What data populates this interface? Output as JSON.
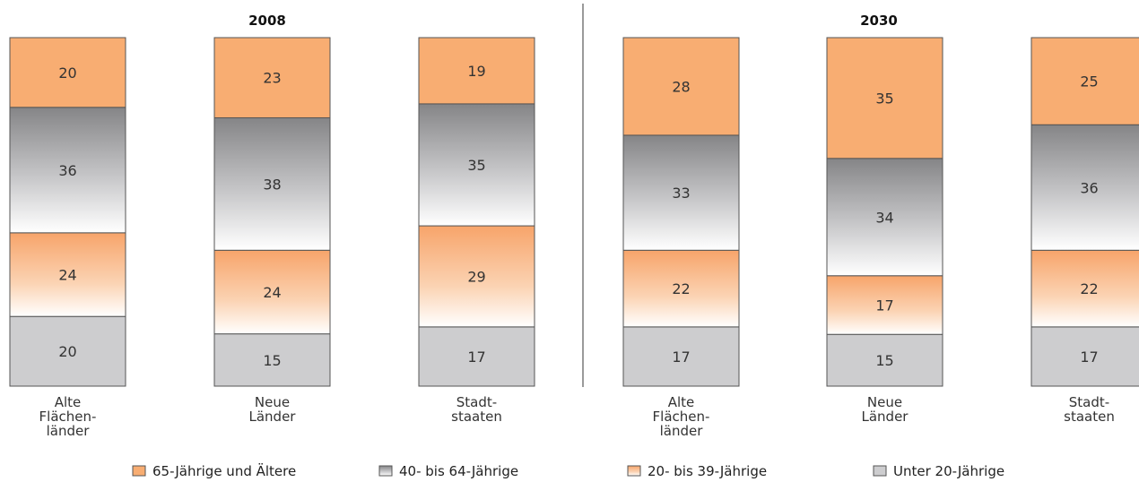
{
  "chart_data": {
    "type": "bar",
    "stacked": true,
    "normalized_to": 100,
    "unit": "%",
    "categories": [
      "Alte Flächen-länder",
      "Neue Länder",
      "Stadt-staaten"
    ],
    "category_lines": [
      [
        "Alte",
        "Flächen-",
        "länder"
      ],
      [
        "Neue",
        "Länder"
      ],
      [
        "Stadt-",
        "staaten"
      ]
    ],
    "panels": [
      {
        "title": "2008",
        "series": [
          {
            "name": "Unter 20-Jährige",
            "values": [
              20,
              15,
              17
            ]
          },
          {
            "name": "20- bis 39-Jährige",
            "values": [
              24,
              24,
              29
            ]
          },
          {
            "name": "40- bis 64-Jährige",
            "values": [
              36,
              38,
              35
            ]
          },
          {
            "name": "65-Jährige und Ältere",
            "values": [
              20,
              23,
              19
            ]
          }
        ]
      },
      {
        "title": "2030",
        "series": [
          {
            "name": "Unter 20-Jährige",
            "values": [
              17,
              15,
              17
            ]
          },
          {
            "name": "20- bis 39-Jährige",
            "values": [
              22,
              17,
              22
            ]
          },
          {
            "name": "40- bis 64-Jährige",
            "values": [
              33,
              34,
              36
            ]
          },
          {
            "name": "65-Jährige und Ältere",
            "values": [
              28,
              35,
              25
            ]
          }
        ]
      }
    ],
    "legend": {
      "placement": "bottom",
      "order": [
        "65-Jährige und Ältere",
        "40- bis 64-Jährige",
        "20- bis 39-Jährige",
        "Unter 20-Jährige"
      ]
    },
    "colors": {
      "65-Jährige und Ältere": "#f8ad72",
      "40- bis 64-Jährige": "#8a8a8c",
      "20- bis 39-Jährige": "#f7a46a",
      "Unter 20-Jährige": "#cdcdcf",
      "divider": "#9a9a9a",
      "outline": "#555555"
    }
  }
}
